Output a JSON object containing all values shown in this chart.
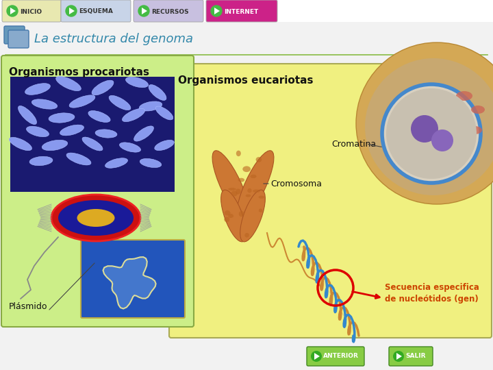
{
  "bg_color": "#f2f2f2",
  "nav_bg": "#ffffff",
  "nav_buttons": [
    {
      "label": "INICIO",
      "bg": "#e8e8b0",
      "text_color": "#333333"
    },
    {
      "label": "ESQUEMA",
      "bg": "#c8d4e8",
      "text_color": "#333333"
    },
    {
      "label": "RECURSOS",
      "bg": "#c8c0e0",
      "text_color": "#333333"
    },
    {
      "label": "INTERNET",
      "bg": "#cc2288",
      "text_color": "#ffffff"
    }
  ],
  "nav_icon_color": "#44bb44",
  "title": "La estructura del genoma",
  "title_color": "#3388aa",
  "title_fontsize": 13,
  "procariotas_label": "Organismos procariotas",
  "eucariotas_label": "Organismos eucariotas",
  "cromatina_label": "Cromatina",
  "cromosoma_label": "Cromosoma",
  "plasmido_label": "Plásmido",
  "secuencia_label": "Secuencia especifica\nde nucleótidos (gen)",
  "box_procariotas_color": "#ccee88",
  "box_eucariotas_color": "#f0f080",
  "anterior_label": "ANTERIOR",
  "salir_label": "SALIR",
  "bottom_btn_bg": "#88cc44",
  "separator_color": "#88bb44"
}
